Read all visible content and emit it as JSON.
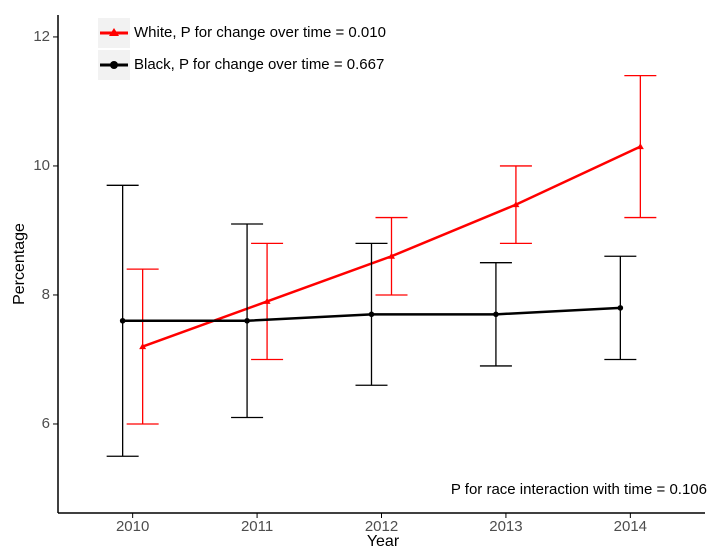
{
  "chart_data": {
    "type": "line",
    "x": [
      2010,
      2011,
      2012,
      2013,
      2014
    ],
    "x_label": "Year",
    "y_label": "Percentage",
    "series": [
      {
        "name": "White, P for change over time = 0.010",
        "color": "#ff0000",
        "marker": "triangle",
        "values": [
          7.2,
          7.9,
          8.6,
          9.4,
          10.3
        ],
        "lower": [
          6.0,
          7.0,
          8.0,
          8.8,
          9.2
        ],
        "upper": [
          8.4,
          8.8,
          9.2,
          10.0,
          11.4
        ]
      },
      {
        "name": "Black, P for change over time = 0.667",
        "color": "#000000",
        "marker": "circle",
        "values": [
          7.6,
          7.6,
          7.7,
          7.7,
          7.8
        ],
        "lower": [
          5.5,
          6.1,
          6.6,
          6.9,
          7.0
        ],
        "upper": [
          9.7,
          9.1,
          8.8,
          8.5,
          8.6
        ]
      }
    ],
    "annotation": "P for race interaction with time = 0.106",
    "xlim": [
      2009.4,
      2014.6
    ],
    "xticks": [
      2010,
      2011,
      2012,
      2013,
      2014
    ],
    "ylim": [
      4.62,
      12.34
    ],
    "yticks": [
      6,
      8,
      10,
      12
    ],
    "grid": false,
    "legend_position": "top-left"
  }
}
